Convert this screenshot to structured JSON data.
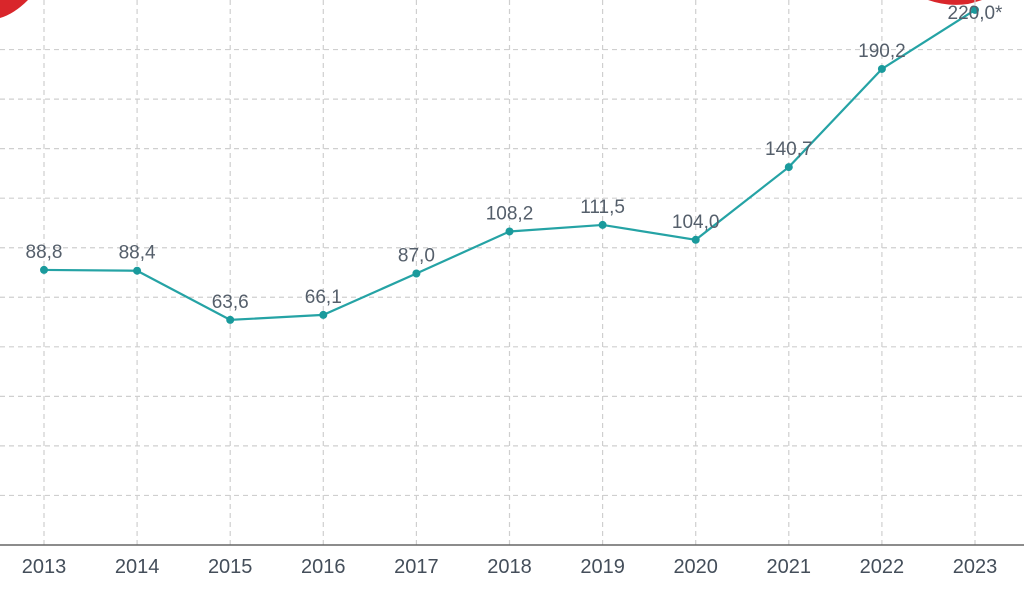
{
  "chart_data": {
    "type": "line",
    "categories": [
      "2013",
      "2014",
      "2015",
      "2016",
      "2017",
      "2018",
      "2019",
      "2020",
      "2021",
      "2022",
      "2023"
    ],
    "series": [
      {
        "values": [
          88.8,
          88.4,
          63.6,
          66.1,
          87.0,
          108.2,
          111.5,
          104.0,
          140.7,
          190.2,
          220.0
        ]
      }
    ],
    "data_labels": [
      "88,8",
      "88,4",
      "63,6",
      "66,1",
      "87,0",
      "108,2",
      "111,5",
      "104,0",
      "140,7",
      "190,2",
      "220,0*"
    ],
    "ylim": [
      -50,
      225
    ],
    "grid": true,
    "colors": {
      "line": "#25a3a5",
      "marker": "#1a9a9c",
      "accent": "#d9262b"
    }
  }
}
